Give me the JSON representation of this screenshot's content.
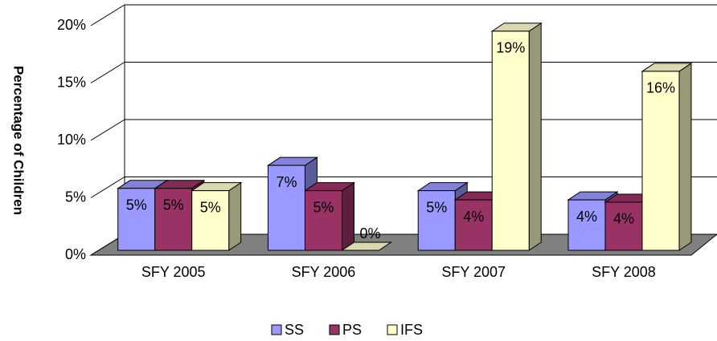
{
  "chart_data": {
    "type": "bar3d",
    "y_label": "Percentage of Children",
    "categories": [
      "SFY 2005",
      "SFY 2006",
      "SFY 2007",
      "SFY 2008"
    ],
    "series": [
      {
        "name": "SS",
        "color": "#9999ff",
        "values": [
          5.4,
          7.4,
          5.2,
          4.4
        ],
        "value_labels": [
          "5%",
          "7%",
          "5%",
          "4%"
        ]
      },
      {
        "name": "PS",
        "color": "#993366",
        "values": [
          5.4,
          5.2,
          4.4,
          4.2
        ],
        "value_labels": [
          "5%",
          "5%",
          "4%",
          "4%"
        ]
      },
      {
        "name": "IFS",
        "color": "#ffffcc",
        "values": [
          5.2,
          0,
          19.1,
          15.6
        ],
        "value_labels": [
          "5%",
          "0%",
          "19%",
          "16%"
        ]
      }
    ],
    "ylim": [
      0,
      20
    ],
    "yticks": [
      {
        "value": 0,
        "label": "0%"
      },
      {
        "value": 5,
        "label": "5%"
      },
      {
        "value": 10,
        "label": "10%"
      },
      {
        "value": 15,
        "label": "15%"
      },
      {
        "value": 20,
        "label": "20%"
      }
    ],
    "grid": true,
    "legend": "bottom"
  }
}
